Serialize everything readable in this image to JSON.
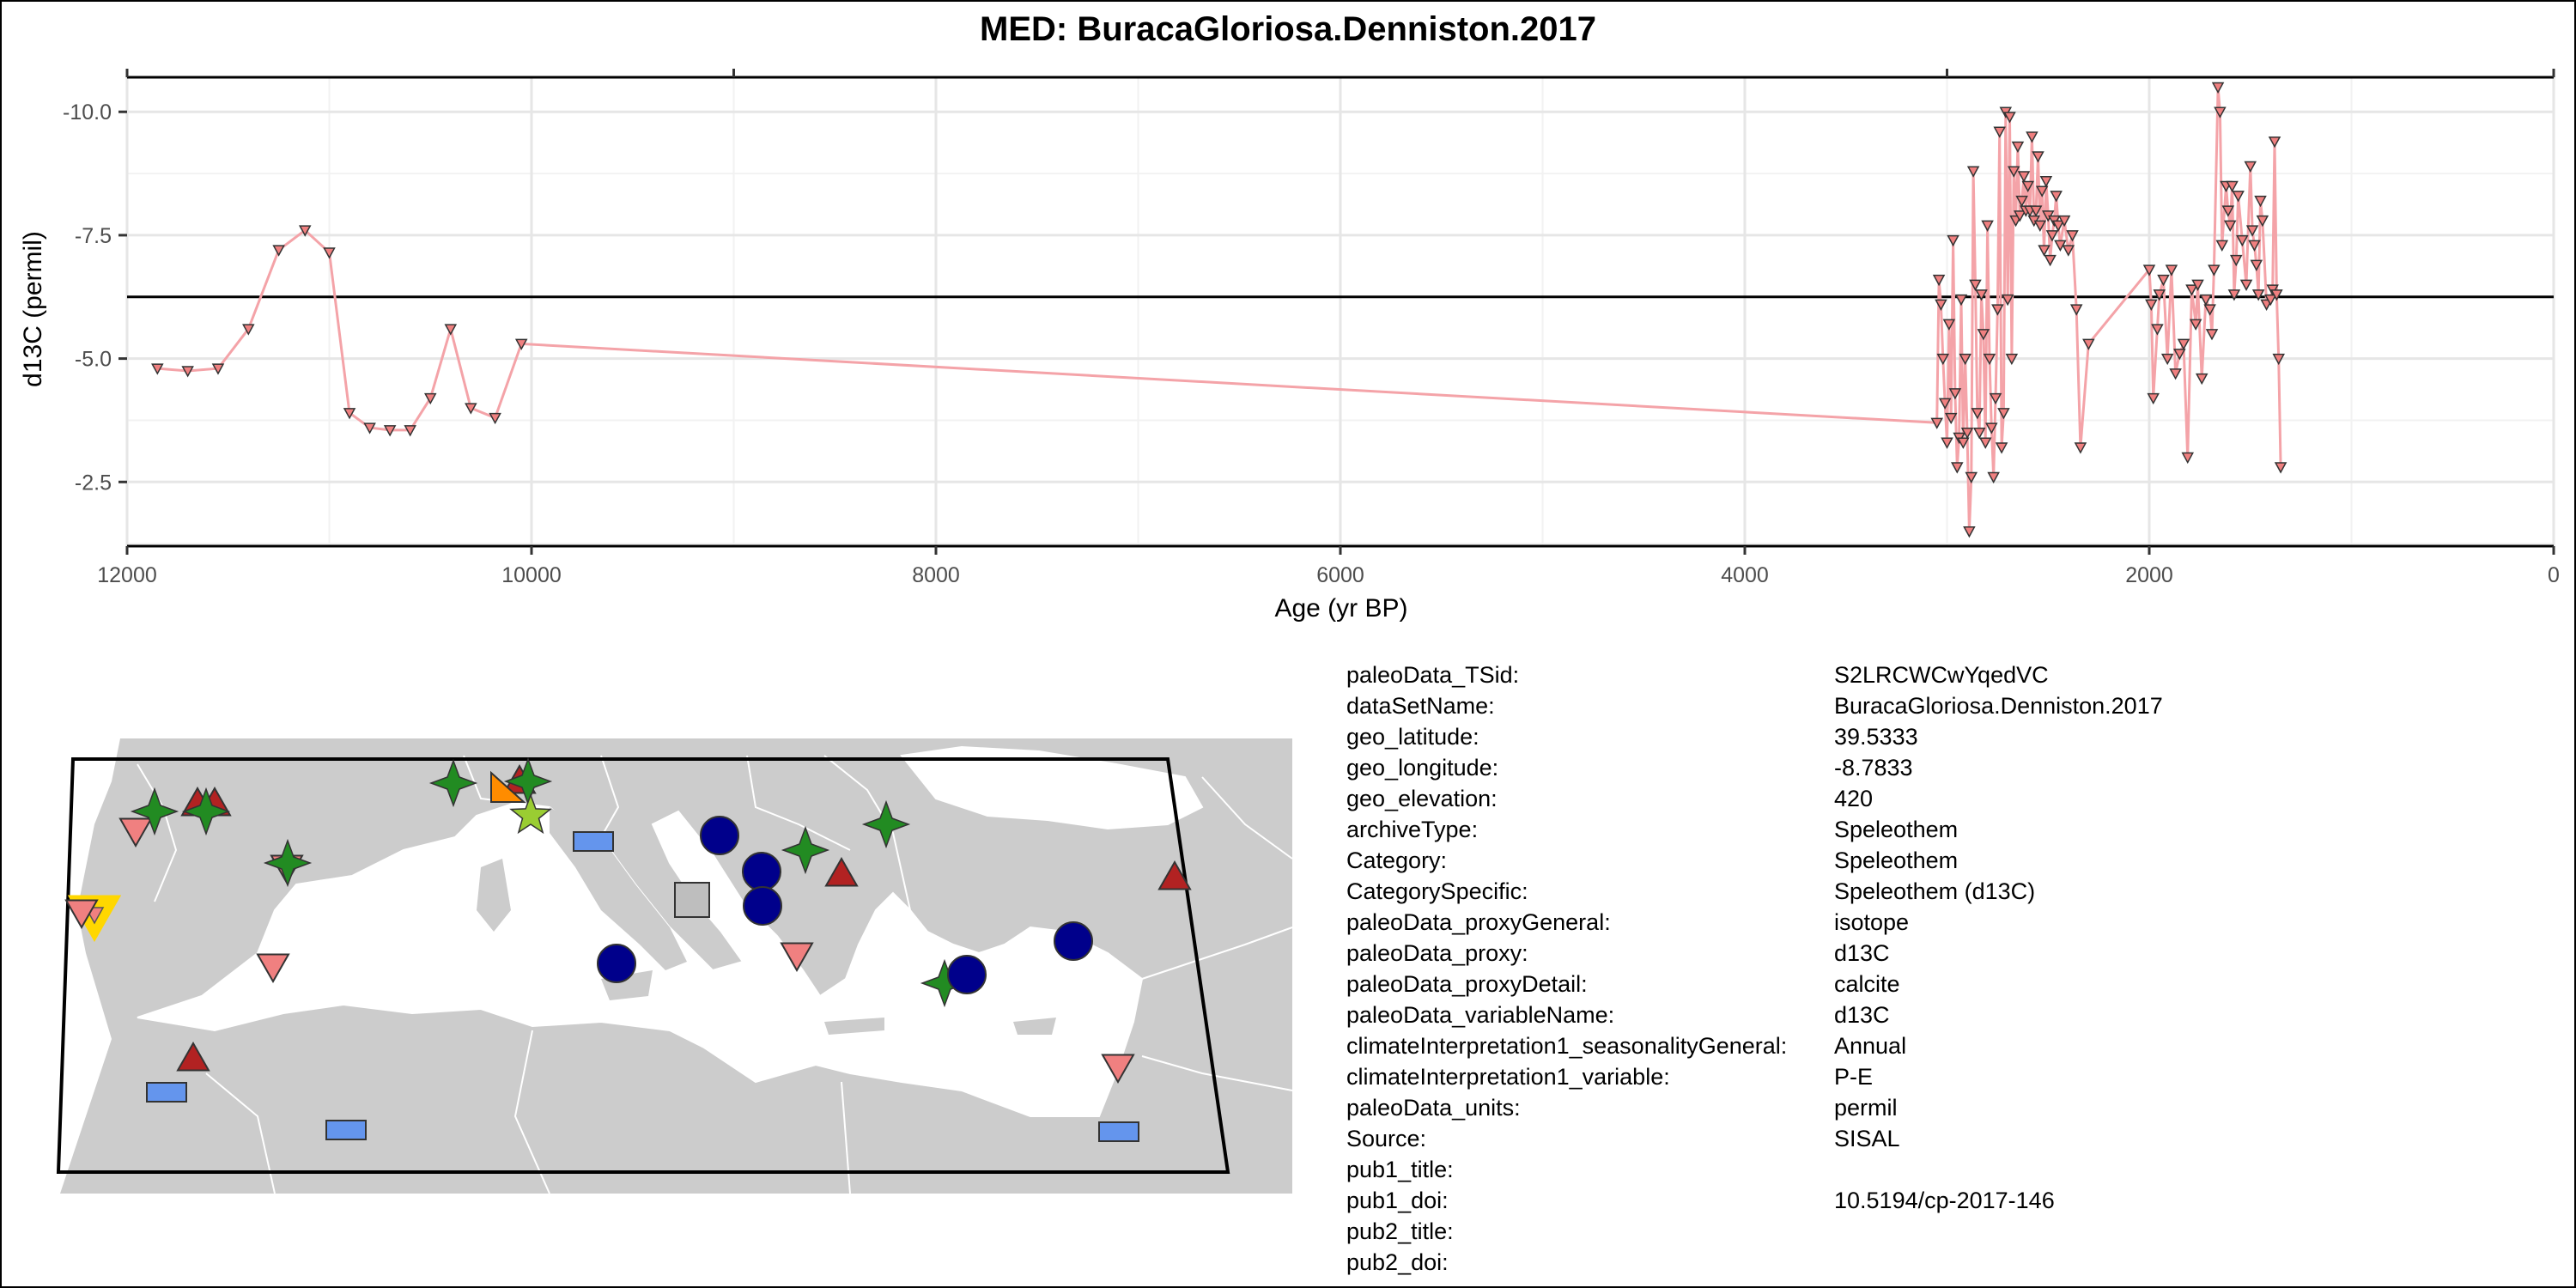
{
  "chart_data": {
    "type": "line",
    "title": "MED: BuracaGloriosa.Denniston.2017",
    "xlabel": "Age (yr BP)",
    "ylabel": "d13C (permil)",
    "x_reversed": true,
    "xlim": [
      12000,
      0
    ],
    "ylim_reversed": true,
    "ylim": [
      -10.7,
      -1.2
    ],
    "x_ticks": [
      12000,
      10000,
      8000,
      6000,
      4000,
      2000,
      0
    ],
    "x_tick_labels": [
      "12000",
      "10000",
      "8000",
      "6000",
      "4000",
      "2000",
      "0"
    ],
    "y_ticks": [
      -10.0,
      -7.5,
      -5.0,
      -2.5
    ],
    "y_tick_labels": [
      "-10.0",
      "-7.5",
      "-5.0",
      "-2.5"
    ],
    "grid": true,
    "mean_line": -6.25,
    "series_color": "#F4A3A8",
    "marker_color": "#F08080",
    "series": [
      {
        "x": [
          11850,
          11700,
          11550,
          11400,
          11250,
          11120,
          11000,
          10900,
          10800,
          10700,
          10600,
          10500,
          10400,
          10300,
          10180,
          10050,
          3050,
          3040,
          3030,
          3020,
          3010,
          3000,
          2990,
          2980,
          2970,
          2960,
          2950,
          2940,
          2930,
          2920,
          2910,
          2900,
          2890,
          2880,
          2870,
          2860,
          2850,
          2840,
          2830,
          2820,
          2810,
          2800,
          2790,
          2780,
          2770,
          2760,
          2750,
          2740,
          2730,
          2720,
          2710,
          2700,
          2690,
          2680,
          2670,
          2660,
          2650,
          2640,
          2630,
          2620,
          2610,
          2600,
          2590,
          2580,
          2570,
          2560,
          2550,
          2540,
          2530,
          2520,
          2510,
          2500,
          2490,
          2480,
          2470,
          2460,
          2450,
          2440,
          2420,
          2400,
          2380,
          2360,
          2340,
          2300,
          2000,
          1990,
          1980,
          1960,
          1950,
          1930,
          1910,
          1890,
          1870,
          1850,
          1830,
          1810,
          1790,
          1770,
          1760,
          1740,
          1720,
          1700,
          1690,
          1680,
          1660,
          1650,
          1640,
          1620,
          1610,
          1600,
          1590,
          1580,
          1570,
          1560,
          1540,
          1520,
          1500,
          1490,
          1480,
          1470,
          1460,
          1450,
          1440,
          1420,
          1400,
          1390,
          1380,
          1370,
          1360,
          1350
        ],
        "y": [
          -4.8,
          -4.75,
          -4.8,
          -5.6,
          -7.2,
          -7.6,
          -7.15,
          -3.9,
          -3.6,
          -3.55,
          -3.55,
          -4.2,
          -5.6,
          -4.0,
          -3.8,
          -5.3,
          -3.7,
          -6.6,
          -6.1,
          -5.0,
          -4.1,
          -3.3,
          -5.7,
          -3.8,
          -7.4,
          -4.3,
          -2.8,
          -3.4,
          -6.2,
          -3.3,
          -5.0,
          -3.5,
          -1.5,
          -2.6,
          -8.8,
          -6.5,
          -3.9,
          -3.5,
          -6.3,
          -5.5,
          -3.3,
          -7.7,
          -5.0,
          -3.6,
          -2.6,
          -4.2,
          -6.0,
          -9.6,
          -3.2,
          -3.9,
          -10.0,
          -6.2,
          -9.9,
          -5.0,
          -8.8,
          -7.8,
          -9.3,
          -7.9,
          -8.2,
          -8.7,
          -8.0,
          -8.5,
          -8.0,
          -9.5,
          -7.8,
          -8.0,
          -9.1,
          -7.7,
          -8.4,
          -7.2,
          -8.6,
          -7.9,
          -7.0,
          -7.5,
          -7.8,
          -8.3,
          -7.7,
          -7.3,
          -7.8,
          -7.2,
          -7.5,
          -6.0,
          -3.2,
          -5.3,
          -6.8,
          -6.1,
          -4.2,
          -5.6,
          -6.3,
          -6.6,
          -5.0,
          -6.8,
          -4.7,
          -5.1,
          -5.3,
          -3.0,
          -6.4,
          -5.7,
          -6.5,
          -4.6,
          -6.2,
          -6.0,
          -5.5,
          -6.8,
          -10.5,
          -10.0,
          -7.3,
          -8.5,
          -8.0,
          -7.7,
          -8.5,
          -6.3,
          -7.0,
          -8.3,
          -7.4,
          -6.5,
          -8.9,
          -7.6,
          -7.3,
          -6.9,
          -6.3,
          -8.2,
          -7.8,
          -6.1,
          -6.2,
          -6.4,
          -9.4,
          -6.3,
          -5.0,
          -2.8
        ]
      }
    ]
  },
  "map": {
    "land_color": "#CCCCCC",
    "border_color": "#FFFFFF",
    "sea_color": "#FFFFFF",
    "sites": [
      {
        "shape": "triangle-down",
        "color": "#FFD700",
        "size": "large"
      },
      {
        "shape": "triangle-down",
        "color": "#F08080"
      },
      {
        "shape": "triangle-down",
        "color": "#F08080"
      },
      {
        "shape": "triangle-down",
        "color": "#F08080"
      },
      {
        "shape": "triangle-down",
        "color": "#F08080"
      },
      {
        "shape": "triangle-down",
        "color": "#F08080"
      },
      {
        "shape": "triangle-down",
        "color": "#F08080"
      },
      {
        "shape": "triangle-up",
        "color": "#B22222"
      },
      {
        "shape": "triangle-up",
        "color": "#B22222"
      },
      {
        "shape": "triangle-up",
        "color": "#B22222"
      },
      {
        "shape": "triangle-up",
        "color": "#B22222"
      },
      {
        "shape": "triangle-up",
        "color": "#B22222"
      },
      {
        "shape": "triangle-up",
        "color": "#B22222"
      },
      {
        "shape": "star4",
        "color": "#228B22"
      },
      {
        "shape": "star4",
        "color": "#228B22"
      },
      {
        "shape": "star4",
        "color": "#228B22"
      },
      {
        "shape": "star4",
        "color": "#228B22"
      },
      {
        "shape": "star4",
        "color": "#228B22"
      },
      {
        "shape": "star4",
        "color": "#228B22"
      },
      {
        "shape": "star4",
        "color": "#228B22"
      },
      {
        "shape": "star4",
        "color": "#228B22"
      },
      {
        "shape": "star5",
        "color": "#9ACD32"
      },
      {
        "shape": "triangle-orange",
        "color": "#FF8C00"
      },
      {
        "shape": "circle",
        "color": "#00008B"
      },
      {
        "shape": "circle",
        "color": "#00008B"
      },
      {
        "shape": "circle",
        "color": "#00008B"
      },
      {
        "shape": "circle",
        "color": "#00008B"
      },
      {
        "shape": "circle",
        "color": "#00008B"
      },
      {
        "shape": "circle",
        "color": "#00008B"
      },
      {
        "shape": "square",
        "color": "#BEBEBE"
      },
      {
        "shape": "rect",
        "color": "#6495ED"
      },
      {
        "shape": "rect",
        "color": "#6495ED"
      },
      {
        "shape": "rect",
        "color": "#6495ED"
      },
      {
        "shape": "rect",
        "color": "#6495ED"
      }
    ]
  },
  "metadata": [
    {
      "key": "paleoData_TSid:",
      "value": "S2LRCWCwYqedVC"
    },
    {
      "key": "dataSetName:",
      "value": "BuracaGloriosa.Denniston.2017"
    },
    {
      "key": "geo_latitude:",
      "value": "39.5333"
    },
    {
      "key": "geo_longitude:",
      "value": "-8.7833"
    },
    {
      "key": "geo_elevation:",
      "value": "420"
    },
    {
      "key": "archiveType:",
      "value": "Speleothem"
    },
    {
      "key": "Category:",
      "value": "Speleothem"
    },
    {
      "key": "CategorySpecific:",
      "value": "Speleothem (d13C)"
    },
    {
      "key": "paleoData_proxyGeneral:",
      "value": "isotope"
    },
    {
      "key": "paleoData_proxy:",
      "value": "d13C"
    },
    {
      "key": "paleoData_proxyDetail:",
      "value": "calcite"
    },
    {
      "key": "paleoData_variableName:",
      "value": "d13C"
    },
    {
      "key": "climateInterpretation1_seasonalityGeneral:",
      "value": "Annual"
    },
    {
      "key": "climateInterpretation1_variable:",
      "value": "P-E"
    },
    {
      "key": "paleoData_units:",
      "value": "permil"
    },
    {
      "key": "Source:",
      "value": "SISAL"
    },
    {
      "key": "pub1_title:",
      "value": ""
    },
    {
      "key": "pub1_doi:",
      "value": "10.5194/cp-2017-146"
    },
    {
      "key": "pub2_title:",
      "value": ""
    },
    {
      "key": "pub2_doi:",
      "value": ""
    }
  ]
}
